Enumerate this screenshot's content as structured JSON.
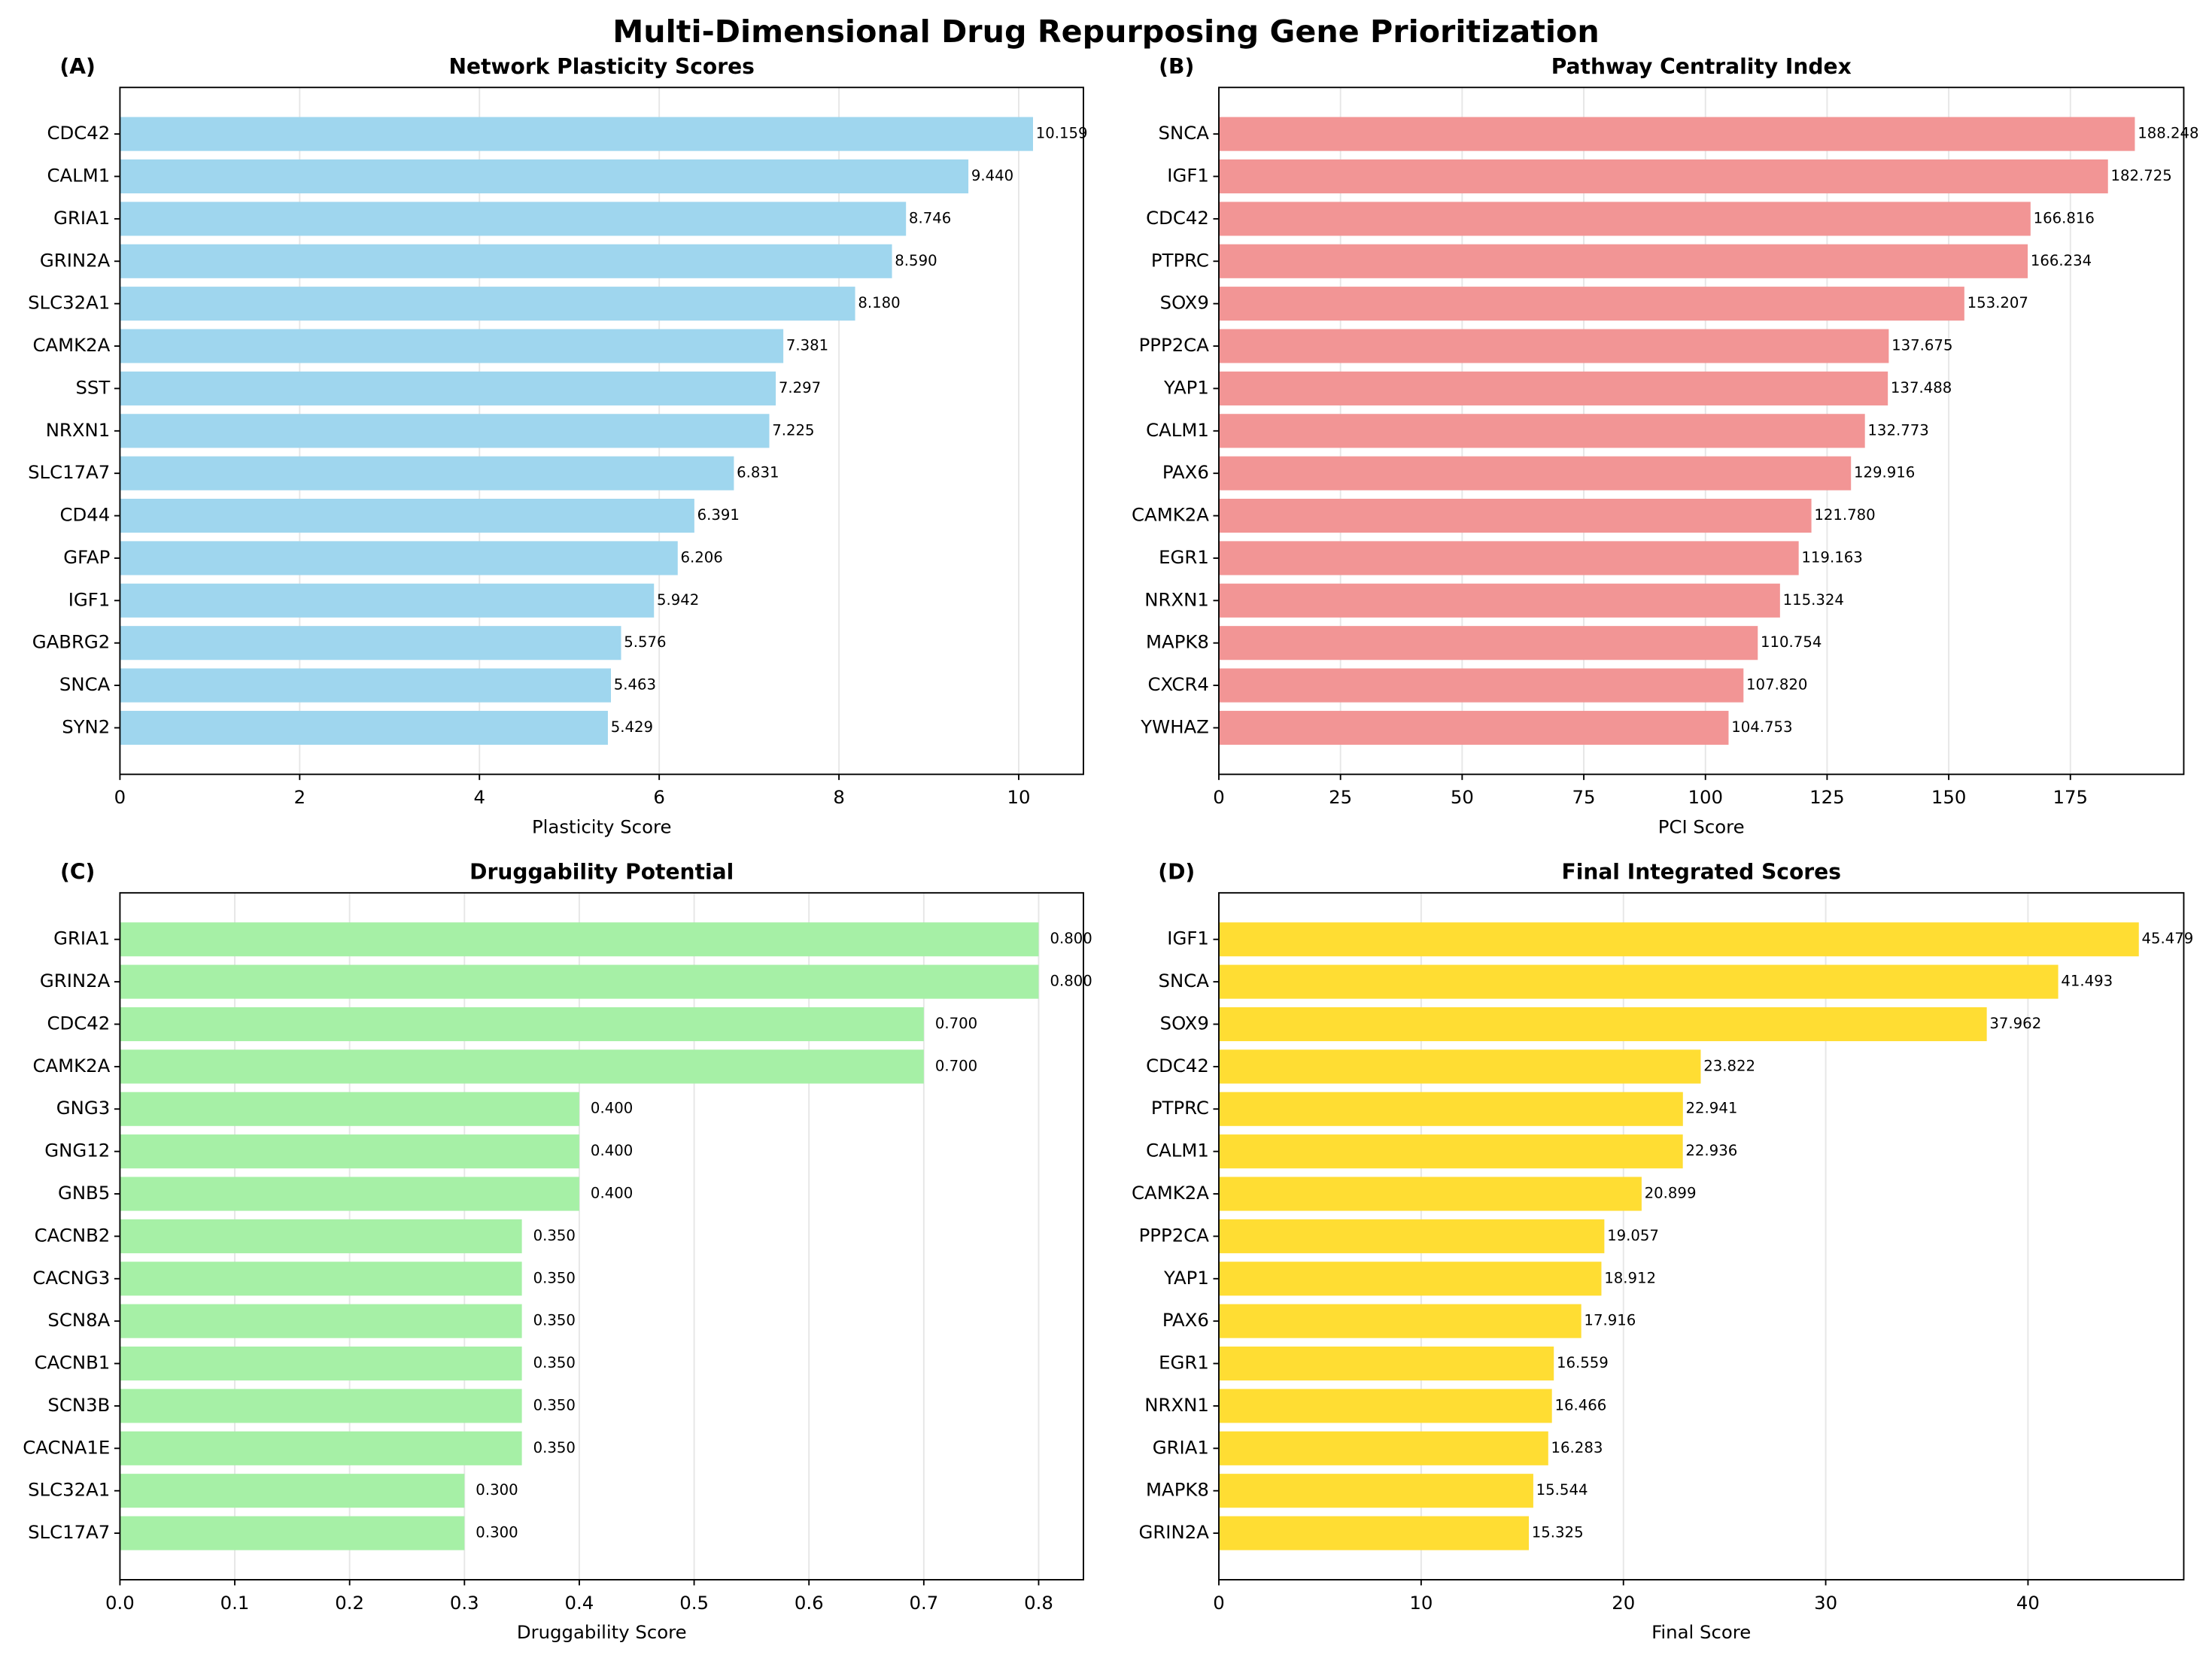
{
  "title": "Multi-Dimensional Drug Repurposing Gene Prioritization",
  "chart_data": [
    {
      "type": "barh",
      "panel_label": "(A)",
      "title": "Network Plasticity Scores",
      "xlabel": "Plasticity Score",
      "color": "#9fd6ee",
      "grid": true,
      "categories": [
        "CDC42",
        "CALM1",
        "GRIA1",
        "GRIN2A",
        "SLC32A1",
        "CAMK2A",
        "SST",
        "NRXN1",
        "SLC17A7",
        "CD44",
        "GFAP",
        "IGF1",
        "GABRG2",
        "SNCA",
        "SYN2"
      ],
      "values": [
        10.159,
        9.44,
        8.746,
        8.59,
        8.18,
        7.381,
        7.297,
        7.225,
        6.831,
        6.391,
        6.206,
        5.942,
        5.576,
        5.463,
        5.429
      ],
      "value_labels": [
        "10.159",
        "9.440",
        "8.746",
        "8.590",
        "8.180",
        "7.381",
        "7.297",
        "7.225",
        "6.831",
        "6.391",
        "6.206",
        "5.942",
        "5.576",
        "5.463",
        "5.429"
      ],
      "xlim": [
        0,
        10.72
      ],
      "xticks": [
        0,
        2,
        4,
        6,
        8,
        10
      ]
    },
    {
      "type": "barh",
      "panel_label": "(B)",
      "title": "Pathway Centrality Index",
      "xlabel": "PCI Score",
      "color": "#f29595",
      "grid": true,
      "categories": [
        "SNCA",
        "IGF1",
        "CDC42",
        "PTPRC",
        "SOX9",
        "PPP2CA",
        "YAP1",
        "CALM1",
        "PAX6",
        "CAMK2A",
        "EGR1",
        "NRXN1",
        "MAPK8",
        "CXCR4",
        "YWHAZ"
      ],
      "values": [
        188.248,
        182.725,
        166.816,
        166.234,
        153.207,
        137.675,
        137.488,
        132.773,
        129.916,
        121.78,
        119.163,
        115.324,
        110.754,
        107.82,
        104.753
      ],
      "value_labels": [
        "188.248",
        "182.725",
        "166.816",
        "166.234",
        "153.207",
        "137.675",
        "137.488",
        "132.773",
        "129.916",
        "121.780",
        "119.163",
        "115.324",
        "110.754",
        "107.820",
        "104.753"
      ],
      "xlim": [
        0,
        198.3
      ],
      "xticks": [
        0,
        25,
        50,
        75,
        100,
        125,
        150,
        175
      ]
    },
    {
      "type": "barh",
      "panel_label": "(C)",
      "title": "Druggability Potential",
      "xlabel": "Druggability Score",
      "color": "#a6f0a6",
      "grid": true,
      "categories": [
        "GRIA1",
        "GRIN2A",
        "CDC42",
        "CAMK2A",
        "GNG3",
        "GNG12",
        "GNB5",
        "CACNB2",
        "CACNG3",
        "SCN8A",
        "CACNB1",
        "SCN3B",
        "CACNA1E",
        "SLC32A1",
        "SLC17A7"
      ],
      "values": [
        0.8,
        0.8,
        0.7,
        0.7,
        0.4,
        0.4,
        0.4,
        0.35,
        0.35,
        0.35,
        0.35,
        0.35,
        0.35,
        0.3,
        0.3
      ],
      "value_labels": [
        "0.800",
        "0.800",
        "0.700",
        "0.700",
        "0.400",
        "0.400",
        "0.400",
        "0.350",
        "0.350",
        "0.350",
        "0.350",
        "0.350",
        "0.350",
        "0.300",
        "0.300"
      ],
      "xlim": [
        0,
        0.839
      ],
      "xticks": [
        {
          "value": 0,
          "label": "0.0"
        },
        0.1,
        0.2,
        0.3,
        0.4,
        0.5,
        0.6,
        0.7,
        0.8
      ]
    },
    {
      "type": "barh",
      "panel_label": "(D)",
      "title": "Final Integrated Scores",
      "xlabel": "Final Score",
      "color": "#ffdd33",
      "grid": true,
      "categories": [
        "IGF1",
        "SNCA",
        "SOX9",
        "CDC42",
        "PTPRC",
        "CALM1",
        "CAMK2A",
        "PPP2CA",
        "YAP1",
        "PAX6",
        "EGR1",
        "NRXN1",
        "GRIA1",
        "MAPK8",
        "GRIN2A"
      ],
      "values": [
        45.479,
        41.493,
        37.962,
        23.822,
        22.941,
        22.936,
        20.899,
        19.057,
        18.912,
        17.916,
        16.559,
        16.466,
        16.283,
        15.544,
        15.325
      ],
      "value_labels": [
        "45.479",
        "41.493",
        "37.962",
        "23.822",
        "22.941",
        "22.936",
        "20.899",
        "19.057",
        "18.912",
        "17.916",
        "16.559",
        "16.466",
        "16.283",
        "15.544",
        "15.325"
      ],
      "xlim": [
        0,
        47.7
      ],
      "xticks": [
        0,
        10,
        20,
        30,
        40
      ]
    }
  ]
}
